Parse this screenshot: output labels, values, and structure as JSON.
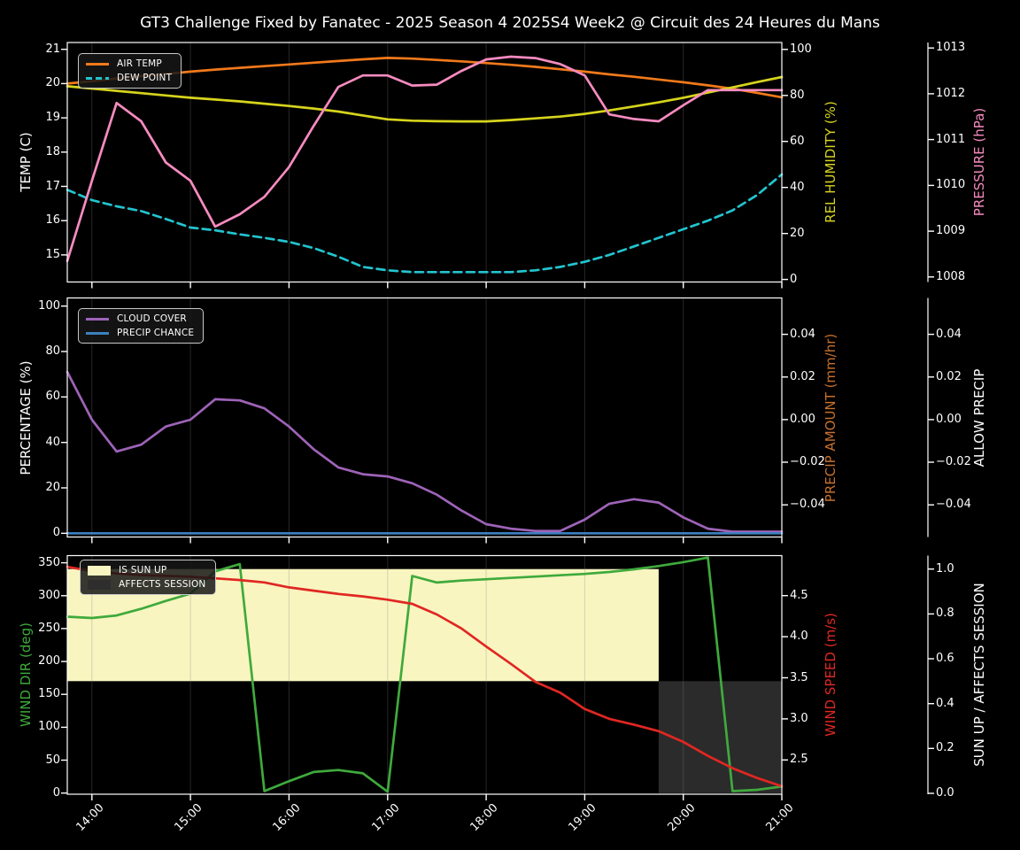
{
  "title": "GT3 Challenge Fixed by Fanatec - 2025 Season 4 2025S4 Week2 @ Circuit des 24 Heures du Mans",
  "figure": {
    "background": "#000000",
    "foreground": "#ffffff",
    "grid_color": "rgba(128,128,128,0.3)"
  },
  "chart_data": {
    "type": "line",
    "x": {
      "unit": "time",
      "range": [
        13.75,
        21.0
      ],
      "ticks": [
        {
          "v": 14,
          "label": "14:00"
        },
        {
          "v": 15,
          "label": "15:00"
        },
        {
          "v": 16,
          "label": "16:00"
        },
        {
          "v": 17,
          "label": "17:00"
        },
        {
          "v": 18,
          "label": "18:00"
        },
        {
          "v": 19,
          "label": "19:00"
        },
        {
          "v": 20,
          "label": "20:00"
        },
        {
          "v": 21,
          "label": "21:00"
        }
      ],
      "values": [
        13.75,
        14.0,
        14.25,
        14.5,
        14.75,
        15.0,
        15.25,
        15.5,
        15.75,
        16.0,
        16.25,
        16.5,
        16.75,
        17.0,
        17.25,
        17.5,
        17.75,
        18.0,
        18.25,
        18.5,
        18.75,
        19.0,
        19.25,
        19.5,
        19.75,
        20.0,
        20.25,
        20.5,
        20.75,
        21.0
      ]
    },
    "charts": [
      {
        "id": "atmosphere",
        "axes": {
          "left": {
            "label": "TEMP (C)",
            "color": "#ffffff",
            "range": [
              14.21,
              21.2
            ],
            "ticks": [
              {
                "v": 15,
                "label": "15"
              },
              {
                "v": 16,
                "label": "16"
              },
              {
                "v": 17,
                "label": "17"
              },
              {
                "v": 18,
                "label": "18"
              },
              {
                "v": 19,
                "label": "19"
              },
              {
                "v": 20,
                "label": "20"
              },
              {
                "v": 21,
                "label": "21"
              }
            ]
          },
          "right1": {
            "label": "REL HUMIDITY (%)",
            "color": "#d6d41c",
            "range": [
              -1.1,
              103.0
            ],
            "ticks": [
              {
                "v": 0,
                "label": "0"
              },
              {
                "v": 20,
                "label": "20"
              },
              {
                "v": 40,
                "label": "40"
              },
              {
                "v": 60,
                "label": "60"
              },
              {
                "v": 80,
                "label": "80"
              },
              {
                "v": 100,
                "label": "100"
              }
            ]
          },
          "right2": {
            "label": "PRESSURE (hPa)",
            "color": "#f78bc0",
            "range": [
              1007.89,
              1013.12
            ],
            "ticks": [
              {
                "v": 1008,
                "label": "1008"
              },
              {
                "v": 1009,
                "label": "1009"
              },
              {
                "v": 1010,
                "label": "1010"
              },
              {
                "v": 1011,
                "label": "1011"
              },
              {
                "v": 1012,
                "label": "1012"
              },
              {
                "v": 1013,
                "label": "1013"
              }
            ]
          }
        },
        "legend": [
          {
            "label": "AIR TEMP",
            "color": "#f2791b",
            "style": "solid"
          },
          {
            "label": "DEW POINT",
            "color": "#22c4cf",
            "style": "dashed"
          }
        ],
        "series": [
          {
            "name": "AIR TEMP",
            "axis": "left",
            "color": "#f2791b",
            "dashed": false,
            "values": [
              20.0,
              20.07,
              20.15,
              20.22,
              20.28,
              20.35,
              20.41,
              20.46,
              20.51,
              20.56,
              20.61,
              20.66,
              20.71,
              20.75,
              20.73,
              20.69,
              20.65,
              20.6,
              20.55,
              20.49,
              20.42,
              20.35,
              20.27,
              20.2,
              20.12,
              20.04,
              19.95,
              19.85,
              19.73,
              19.6
            ]
          },
          {
            "name": "DEW POINT",
            "axis": "left",
            "color": "#22c4cf",
            "dashed": true,
            "values": [
              16.9,
              16.6,
              16.42,
              16.28,
              16.05,
              15.8,
              15.72,
              15.6,
              15.5,
              15.38,
              15.2,
              14.95,
              14.65,
              14.55,
              14.5,
              14.5,
              14.5,
              14.5,
              14.5,
              14.55,
              14.65,
              14.8,
              15.0,
              15.25,
              15.5,
              15.75,
              16.0,
              16.3,
              16.75,
              17.35
            ]
          },
          {
            "name": "REL HUMIDITY",
            "axis": "right1",
            "color": "#d6d41c",
            "dashed": false,
            "values": [
              84,
              83,
              82,
              81,
              80,
              79,
              78.2,
              77.4,
              76.4,
              75.4,
              74.3,
              73,
              71.3,
              69.6,
              69,
              68.8,
              68.7,
              68.7,
              69.3,
              70,
              70.8,
              72,
              73.5,
              75.2,
              77,
              79,
              81.2,
              83.5,
              85.8,
              88
            ]
          },
          {
            "name": "PRESSURE",
            "axis": "right2",
            "color": "#f78bc0",
            "dashed": false,
            "values": [
              1008.35,
              1010.1,
              1011.8,
              1011.4,
              1010.5,
              1010.1,
              1009.1,
              1009.37,
              1009.75,
              1010.4,
              1011.3,
              1012.15,
              1012.4,
              1012.4,
              1012.18,
              1012.2,
              1012.5,
              1012.75,
              1012.81,
              1012.78,
              1012.65,
              1012.4,
              1011.55,
              1011.45,
              1011.4,
              1011.75,
              1012.08,
              1012.08,
              1012.08,
              1012.08
            ]
          }
        ]
      },
      {
        "id": "precipitation",
        "axes": {
          "left": {
            "label": "PERCENTAGE (%)",
            "color": "#ffffff",
            "range": [
              -1.65,
              103.6
            ],
            "ticks": [
              {
                "v": 0,
                "label": "0"
              },
              {
                "v": 20,
                "label": "20"
              },
              {
                "v": 40,
                "label": "40"
              },
              {
                "v": 60,
                "label": "60"
              },
              {
                "v": 80,
                "label": "80"
              },
              {
                "v": 100,
                "label": "100"
              }
            ]
          },
          "right1": {
            "label": "PRECIP AMOUNT (mm/hr)",
            "color": "#c8702c",
            "range": [
              -0.0551,
              0.0571
            ],
            "ticks": [
              {
                "v": 0.04,
                "label": "0.04"
              },
              {
                "v": 0.02,
                "label": "0.02"
              },
              {
                "v": 0.0,
                "label": "0.00"
              },
              {
                "v": -0.02,
                "label": "−0.02"
              },
              {
                "v": -0.04,
                "label": "−0.04"
              }
            ]
          },
          "right2": {
            "label": "ALLOW PRECIP",
            "color": "#ffffff",
            "range": [
              -0.0551,
              0.0571
            ],
            "ticks": [
              {
                "v": 0.04,
                "label": "0.04"
              },
              {
                "v": 0.02,
                "label": "0.02"
              },
              {
                "v": 0.0,
                "label": "0.00"
              },
              {
                "v": -0.02,
                "label": "−0.02"
              },
              {
                "v": -0.04,
                "label": "−0.04"
              }
            ]
          }
        },
        "legend": [
          {
            "label": "CLOUD COVER",
            "color": "#9e63b8",
            "style": "solid"
          },
          {
            "label": "PRECIP CHANCE",
            "color": "#3d80be",
            "style": "solid"
          }
        ],
        "series": [
          {
            "name": "CLOUD COVER",
            "axis": "left",
            "color": "#9e63b8",
            "dashed": false,
            "values": [
              71,
              50,
              36,
              39,
              47,
              50,
              59,
              58.5,
              55,
              47,
              37,
              29,
              26,
              25,
              22,
              17,
              10,
              4,
              2,
              1,
              1,
              6,
              13,
              15,
              13.5,
              7,
              2,
              0.7,
              0.7,
              0.7
            ]
          },
          {
            "name": "PRECIP CHANCE",
            "axis": "left",
            "color": "#3d80be",
            "dashed": false,
            "values": [
              0,
              0,
              0,
              0,
              0,
              0,
              0,
              0,
              0,
              0,
              0,
              0,
              0,
              0,
              0,
              0,
              0,
              0,
              0,
              0,
              0,
              0,
              0,
              0,
              0,
              0,
              0,
              0,
              0,
              0
            ]
          }
        ]
      },
      {
        "id": "wind",
        "axes": {
          "left": {
            "label": "WIND DIR (deg)",
            "color": "#3faa3c",
            "range": [
              -1.75,
              360.9
            ],
            "ticks": [
              {
                "v": 0,
                "label": "0"
              },
              {
                "v": 50,
                "label": "50"
              },
              {
                "v": 100,
                "label": "100"
              },
              {
                "v": 150,
                "label": "150"
              },
              {
                "v": 200,
                "label": "200"
              },
              {
                "v": 250,
                "label": "250"
              },
              {
                "v": 300,
                "label": "300"
              },
              {
                "v": 350,
                "label": "350"
              }
            ]
          },
          "right1": {
            "label": "WIND SPEED (m/s)",
            "color": "#e02722",
            "range": [
              2.083,
              4.987
            ],
            "ticks": [
              {
                "v": 2.5,
                "label": "2.5"
              },
              {
                "v": 3.0,
                "label": "3.0"
              },
              {
                "v": 3.5,
                "label": "3.5"
              },
              {
                "v": 4.0,
                "label": "4.0"
              },
              {
                "v": 4.5,
                "label": "4.5"
              }
            ]
          },
          "right2": {
            "label": "SUN UP / AFFECTS SESSION",
            "color": "#ffffff",
            "range": [
              -0.004,
              1.06
            ],
            "ticks": [
              {
                "v": 0.0,
                "label": "0.0"
              },
              {
                "v": 0.2,
                "label": "0.2"
              },
              {
                "v": 0.4,
                "label": "0.4"
              },
              {
                "v": 0.6,
                "label": "0.6"
              },
              {
                "v": 0.8,
                "label": "0.8"
              },
              {
                "v": 1.0,
                "label": "1.0"
              }
            ]
          }
        },
        "legend": [
          {
            "label": "IS SUN UP",
            "color": "#f8f5c0",
            "style": "patch"
          },
          {
            "label": "AFFECTS SESSION",
            "color": "#2e2e2e",
            "style": "patch"
          }
        ],
        "bands": [
          {
            "name": "IS SUN UP",
            "color": "#f8f5c0",
            "axis": "right2",
            "x": [
              13.75,
              19.75
            ],
            "y": [
              0.5,
              1.0
            ]
          },
          {
            "name": "AFFECTS SESSION",
            "color": "#2b2b2b",
            "axis": "right2",
            "x": [
              19.75,
              21.0
            ],
            "y": [
              0.0,
              0.5
            ]
          }
        ],
        "series": [
          {
            "name": "WIND DIR",
            "axis": "left",
            "color": "#3faa3c",
            "dashed": false,
            "values": [
              268,
              266,
              270,
              280,
              292,
              303,
              337,
              348,
              3,
              18,
              32,
              35,
              30,
              2,
              330,
              320,
              323,
              325,
              327,
              329,
              331,
              333,
              336,
              340,
              345,
              351,
              358,
              3,
              5,
              10
            ]
          },
          {
            "name": "WIND SPEED",
            "axis": "right1",
            "color": "#e02722",
            "dashed": false,
            "values": [
              4.85,
              4.8,
              4.77,
              4.75,
              4.74,
              4.73,
              4.71,
              4.69,
              4.66,
              4.6,
              4.56,
              4.52,
              4.49,
              4.45,
              4.4,
              4.27,
              4.1,
              3.88,
              3.67,
              3.45,
              3.32,
              3.12,
              3.0,
              2.93,
              2.85,
              2.72,
              2.55,
              2.4,
              2.28,
              2.18
            ]
          }
        ]
      }
    ]
  }
}
